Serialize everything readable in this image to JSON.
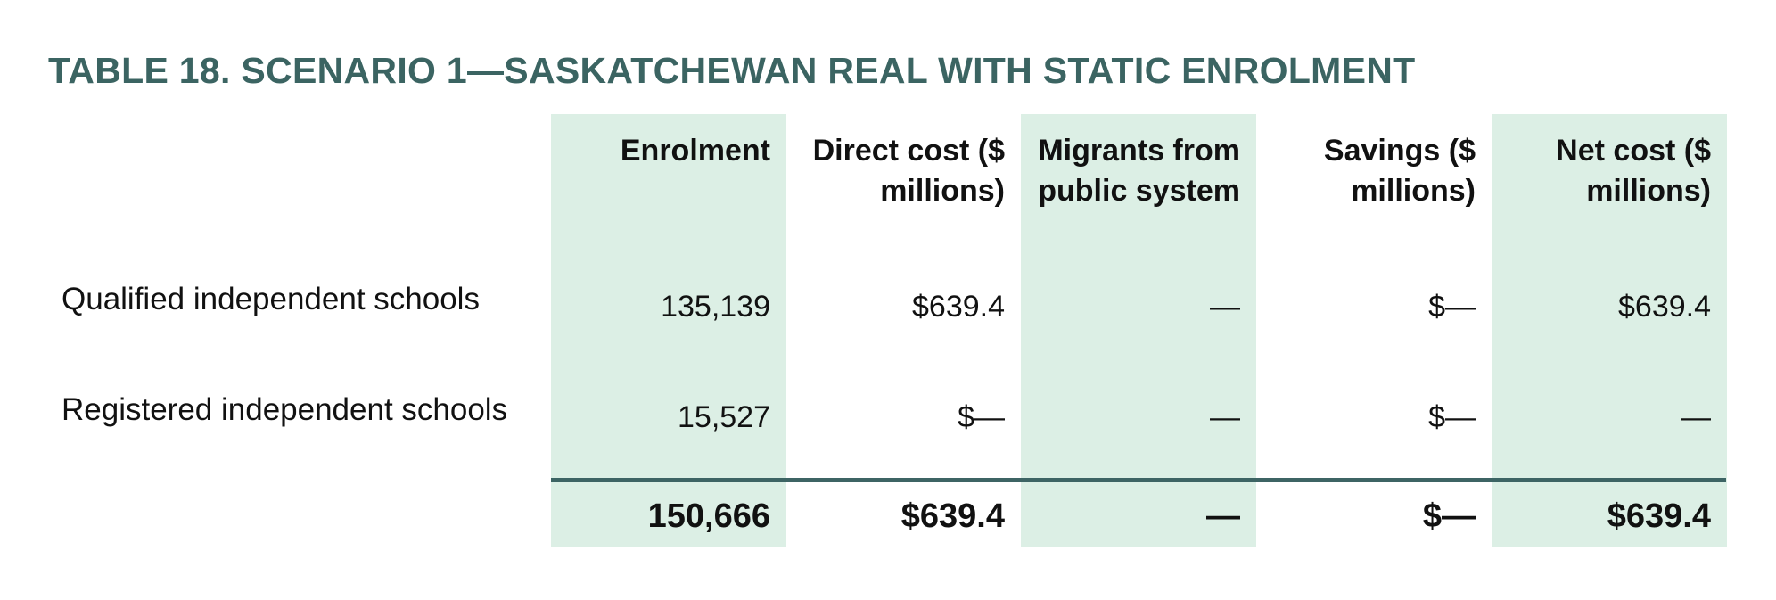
{
  "title": "TABLE 18. SCENARIO 1—SASKATCHEWAN REAL WITH STATIC ENROLMENT",
  "colors": {
    "title": "#3b6462",
    "shade": "#dcefe5",
    "rule": "#3d6464"
  },
  "columns": [
    "Enrolment",
    "Direct cost ($ millions)",
    "Migrants from public system",
    "Savings ($ millions)",
    "Net cost ($ millions)"
  ],
  "rows": [
    {
      "label": "Qualified independent schools",
      "values": [
        "135,139",
        "$639.4",
        "—",
        "$—",
        "$639.4"
      ]
    },
    {
      "label": "Registered independent schools",
      "values": [
        "15,527",
        "$—",
        "—",
        "$—",
        "—"
      ]
    }
  ],
  "total": {
    "values": [
      "150,666",
      "$639.4",
      "—",
      "$—",
      "$639.4"
    ]
  }
}
